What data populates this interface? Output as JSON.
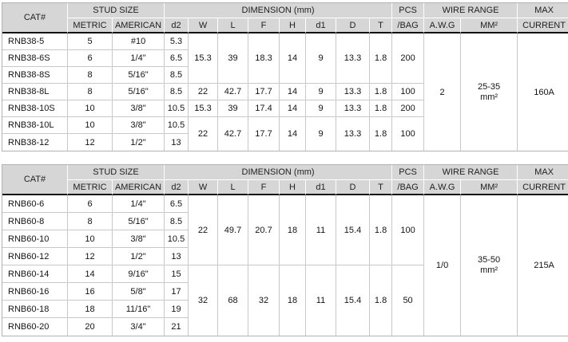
{
  "header": {
    "cat": "CAT#",
    "stud_size": "STUD SIZE",
    "metric": "METRIC",
    "american": "AMERICAN",
    "dimension": "DIMENSION (mm)",
    "dim_cols": [
      "d2",
      "W",
      "L",
      "F",
      "H",
      "d1",
      "D",
      "T"
    ],
    "pcs_line1": "PCS",
    "pcs_line2": "/BAG",
    "wire_range": "WIRE RANGE",
    "awg": "A.W.G",
    "mm2": "MM²",
    "max_line1": "MAX",
    "max_line2": "CURRENT"
  },
  "colors": {
    "header_bg": "#d6d6d6",
    "grid_line": "#c9c9c9",
    "outer_line": "#b2b2b2",
    "header_divider": "#121212"
  },
  "tables": [
    {
      "series": "RNB38",
      "rows": [
        {
          "cat": "RNB38-5",
          "metric": "5",
          "american": "#10",
          "d2": "5.3"
        },
        {
          "cat": "RNB38-6S",
          "metric": "6",
          "american": "1/4\"",
          "d2": "6.5"
        },
        {
          "cat": "RNB38-8S",
          "metric": "8",
          "american": "5/16\"",
          "d2": "8.5"
        },
        {
          "cat": "RNB38-8L",
          "metric": "8",
          "american": "5/16\"",
          "d2": "8.5"
        },
        {
          "cat": "RNB38-10S",
          "metric": "10",
          "american": "3/8\"",
          "d2": "10.5"
        },
        {
          "cat": "RNB38-10L",
          "metric": "10",
          "american": "3/8\"",
          "d2": "10.5"
        },
        {
          "cat": "RNB38-12",
          "metric": "12",
          "american": "1/2\"",
          "d2": "13"
        }
      ],
      "dim_groups": [
        {
          "start": 0,
          "span": 3,
          "W": "15.3",
          "L": "39",
          "F": "18.3",
          "H": "14",
          "d1": "9",
          "D": "13.3",
          "T": "1.8",
          "pcs": "200"
        },
        {
          "start": 3,
          "span": 1,
          "W": "22",
          "L": "42.7",
          "F": "17.7",
          "H": "14",
          "d1": "9",
          "D": "13.3",
          "T": "1.8",
          "pcs": "100"
        },
        {
          "start": 4,
          "span": 1,
          "W": "15.3",
          "L": "39",
          "F": "17.4",
          "H": "14",
          "d1": "9",
          "D": "13.3",
          "T": "1.8",
          "pcs": "200"
        },
        {
          "start": 5,
          "span": 2,
          "W": "22",
          "L": "42.7",
          "F": "17.7",
          "H": "14",
          "d1": "9",
          "D": "13.3",
          "T": "1.8",
          "pcs": "100"
        }
      ],
      "wire": {
        "awg": "2",
        "mm2_line1": "25-35",
        "mm2_line2": "mm²",
        "max_current": "160A"
      }
    },
    {
      "series": "RNB60",
      "rows": [
        {
          "cat": "RNB60-6",
          "metric": "6",
          "american": "1/4\"",
          "d2": "6.5"
        },
        {
          "cat": "RNB60-8",
          "metric": "8",
          "american": "5/16\"",
          "d2": "8.5"
        },
        {
          "cat": "RNB60-10",
          "metric": "10",
          "american": "3/8\"",
          "d2": "10.5"
        },
        {
          "cat": "RNB60-12",
          "metric": "12",
          "american": "1/2\"",
          "d2": "13"
        },
        {
          "cat": "RNB60-14",
          "metric": "14",
          "american": "9/16\"",
          "d2": "15"
        },
        {
          "cat": "RNB60-16",
          "metric": "16",
          "american": "5/8\"",
          "d2": "17"
        },
        {
          "cat": "RNB60-18",
          "metric": "18",
          "american": "11/16\"",
          "d2": "19"
        },
        {
          "cat": "RNB60-20",
          "metric": "20",
          "american": "3/4\"",
          "d2": "21"
        }
      ],
      "dim_groups": [
        {
          "start": 0,
          "span": 4,
          "W": "22",
          "L": "49.7",
          "F": "20.7",
          "H": "18",
          "d1": "11",
          "D": "15.4",
          "T": "1.8",
          "pcs": "100"
        },
        {
          "start": 4,
          "span": 4,
          "W": "32",
          "L": "68",
          "F": "32",
          "H": "18",
          "d1": "11",
          "D": "15.4",
          "T": "1.8",
          "pcs": "50"
        }
      ],
      "wire": {
        "awg": "1/0",
        "mm2_line1": "35-50",
        "mm2_line2": "mm²",
        "max_current": "215A"
      }
    }
  ]
}
